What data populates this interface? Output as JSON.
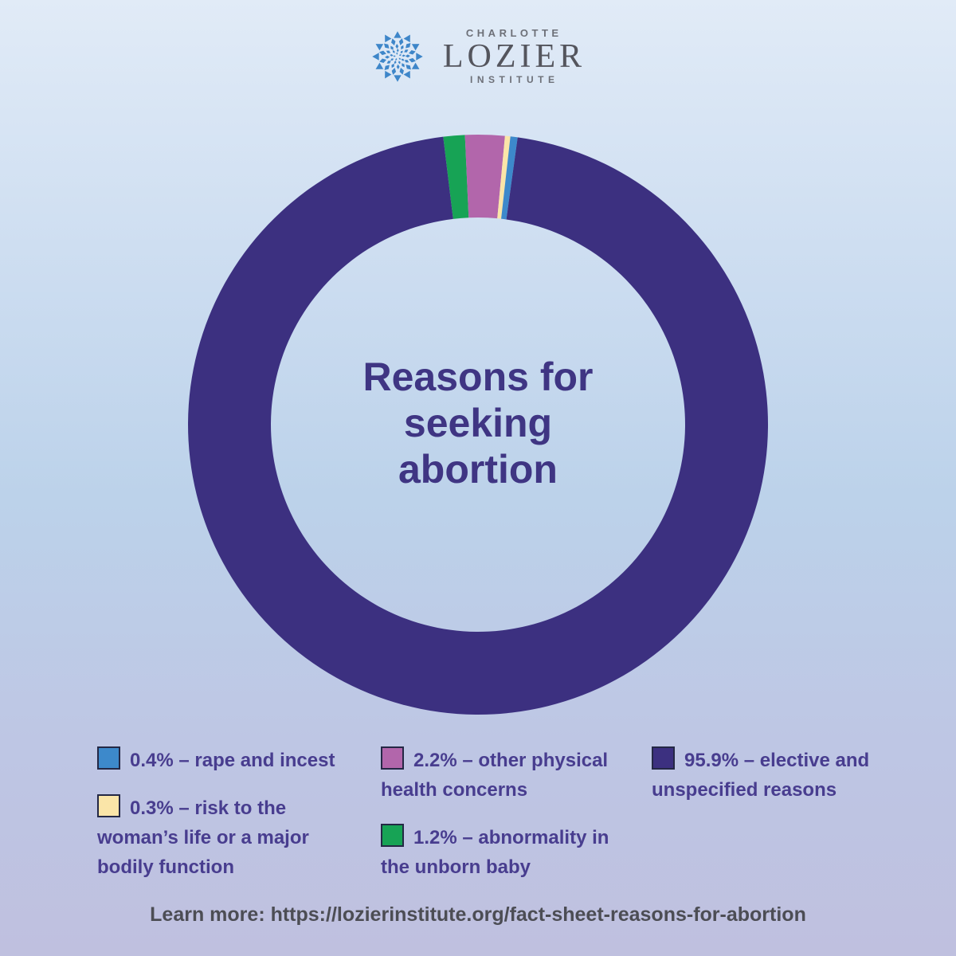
{
  "brand": {
    "name_top": "CHARLOTTE",
    "name_main": "LOZIER",
    "name_bottom": "INSTITUTE",
    "icon": "lozier-mandala-icon",
    "icon_color": "#3e86c9"
  },
  "chart_data": {
    "type": "pie",
    "variant": "donut",
    "title": "Reasons for seeking abortion",
    "title_lines": [
      "Reasons for",
      "seeking",
      "abortion"
    ],
    "direction": "clockwise",
    "start_angle_deg": -6.9,
    "segments": [
      {
        "label": "abnormality in the unborn baby",
        "pct": 1.2,
        "color": "#17a355"
      },
      {
        "label": "other physical health concerns",
        "pct": 2.2,
        "color": "#b266ab"
      },
      {
        "label": "risk to the woman’s life or a major bodily function",
        "pct": 0.3,
        "color": "#fae5a8"
      },
      {
        "label": "rape and incest",
        "pct": 0.4,
        "color": "#3d89cb"
      },
      {
        "label": "elective and unspecified reasons",
        "pct": 95.9,
        "color": "#3c3080"
      }
    ]
  },
  "legend": {
    "columns": [
      {
        "items": [
          {
            "color": "#3d89cb",
            "lines": [
              "0.4% – rape and incest"
            ]
          },
          {
            "color": "#fae5a8",
            "lines": [
              "0.3% – risk to the",
              "woman’s life or a major",
              "bodily function"
            ]
          }
        ]
      },
      {
        "items": [
          {
            "color": "#b266ab",
            "lines": [
              "2.2% – other physical",
              "health concerns"
            ]
          },
          {
            "color": "#17a355",
            "lines": [
              "1.2% – abnormality in",
              "the unborn baby"
            ]
          }
        ]
      },
      {
        "items": [
          {
            "color": "#3c3080",
            "lines": [
              "95.9% – elective and",
              "unspecified reasons"
            ]
          }
        ]
      }
    ]
  },
  "footer": {
    "text": "Learn more: https://lozierinstitute.org/fact-sheet-reasons-for-abortion"
  }
}
